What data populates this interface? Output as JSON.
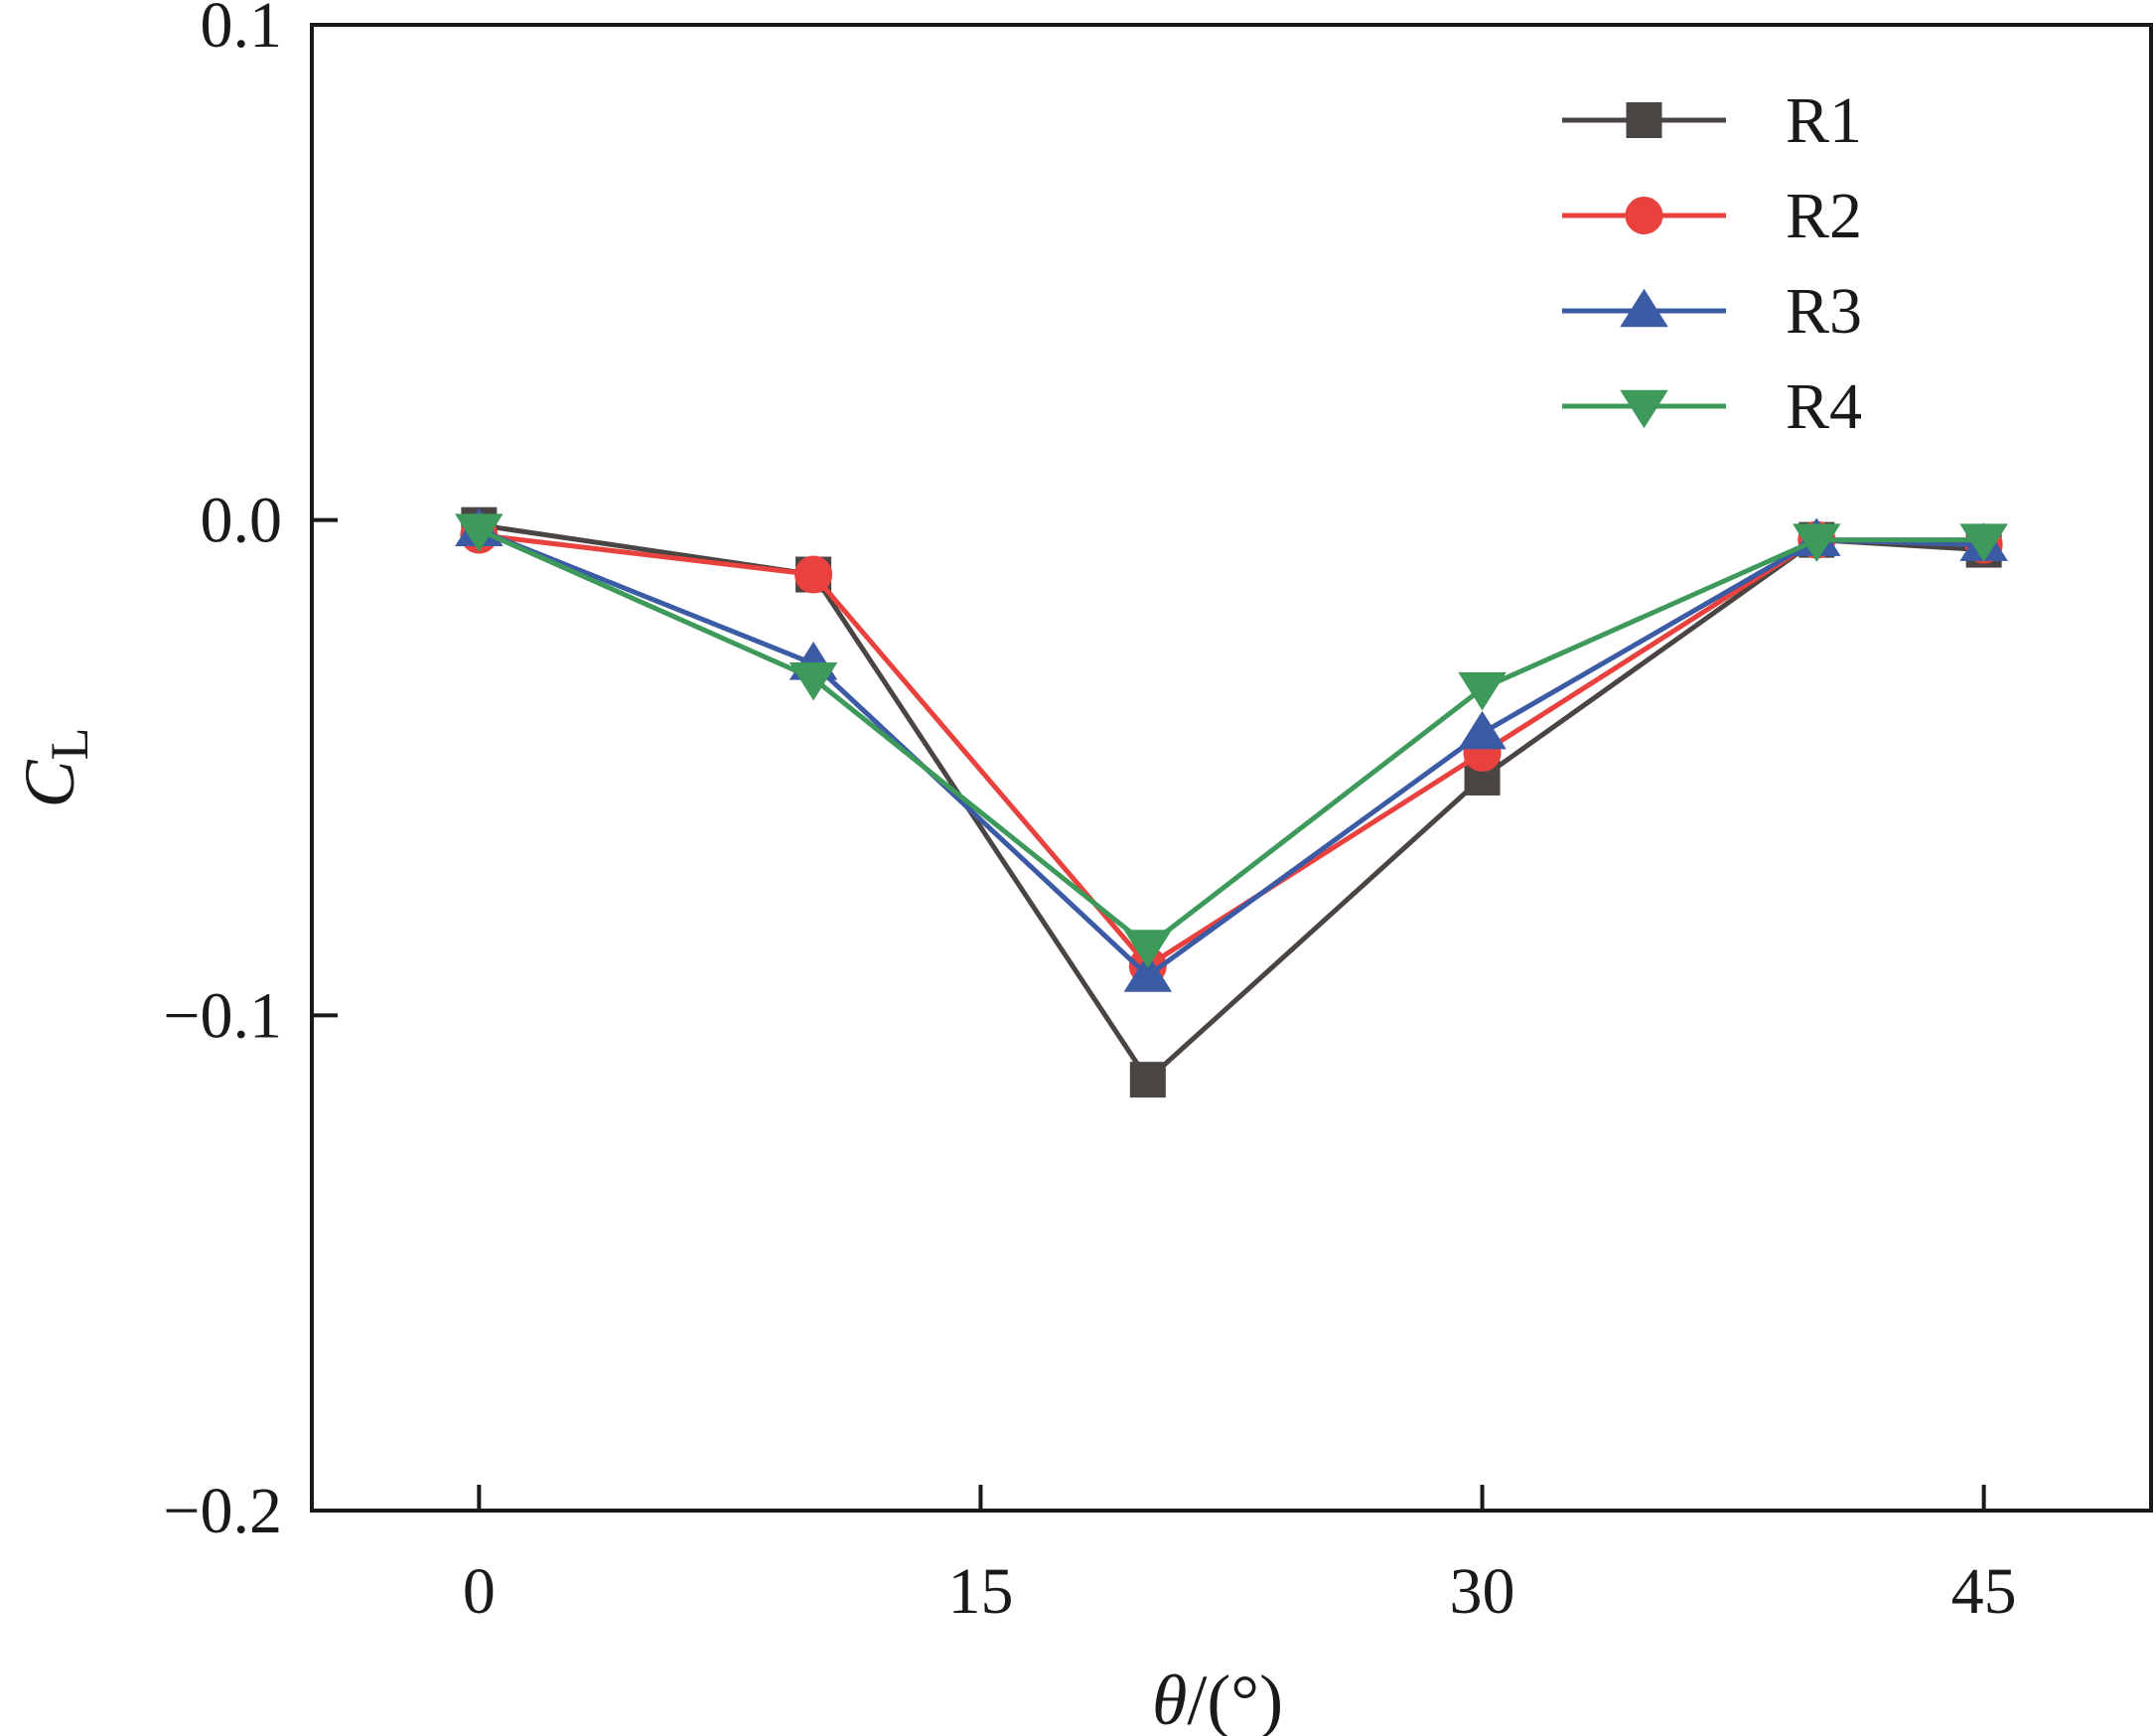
{
  "chart_data": {
    "type": "line",
    "title": "",
    "xlabel": {
      "italic": "θ",
      "rest": "/(°)"
    },
    "ylabel": {
      "main": "C",
      "sub": "L"
    },
    "xlim": [
      -5,
      50
    ],
    "ylim": [
      -0.2,
      0.1
    ],
    "xticks": [
      0,
      15,
      30,
      45
    ],
    "xtick_labels": [
      "0",
      "15",
      "30",
      "45"
    ],
    "yticks": [
      -0.2,
      -0.1,
      0.0,
      0.1
    ],
    "ytick_labels": [
      "−0.2",
      "−0.1",
      "0.0",
      "0.1"
    ],
    "grid": false,
    "legend_position": "top-right",
    "x": [
      0,
      10,
      20,
      30,
      40,
      45
    ],
    "series": [
      {
        "name": "R1",
        "color": "#4a4543",
        "marker": "square",
        "values": [
          -0.001,
          -0.011,
          -0.113,
          -0.052,
          -0.004,
          -0.006
        ]
      },
      {
        "name": "R2",
        "color": "#e8413e",
        "marker": "circle",
        "values": [
          -0.003,
          -0.011,
          -0.09,
          -0.047,
          -0.004,
          -0.005
        ]
      },
      {
        "name": "R3",
        "color": "#3b5ba5",
        "marker": "triangle-up",
        "values": [
          -0.002,
          -0.029,
          -0.092,
          -0.043,
          -0.004,
          -0.005
        ]
      },
      {
        "name": "R4",
        "color": "#3d9a5a",
        "marker": "triangle-down",
        "values": [
          -0.002,
          -0.032,
          -0.086,
          -0.034,
          -0.004,
          -0.004
        ]
      }
    ]
  }
}
